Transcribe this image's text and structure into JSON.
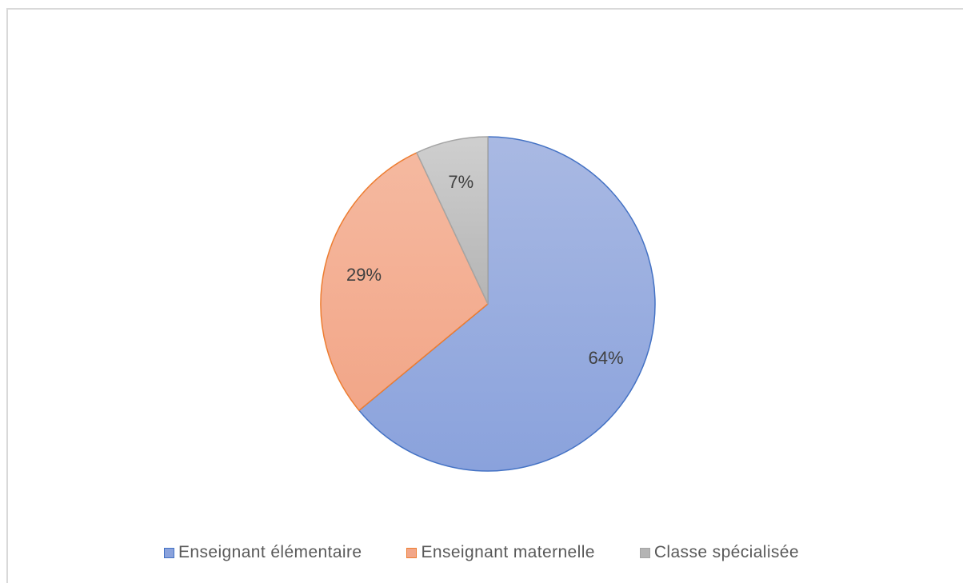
{
  "chart_data": {
    "type": "pie",
    "title": "",
    "categories": [
      "Enseignant élémentaire",
      "Enseignant maternelle",
      "Classe spécialisée"
    ],
    "values": [
      64,
      29,
      7
    ],
    "data_labels": [
      "64%",
      "29%",
      "7%"
    ],
    "legend_position": "bottom",
    "start_angle_deg": 0,
    "direction": "clockwise",
    "colors": {
      "fills_top": [
        "#a9b9e3",
        "#f5b9a0",
        "#cfcfcf"
      ],
      "fills_bottom": [
        "#8aa2dc",
        "#f2a688",
        "#b4b4b4"
      ],
      "strokes": [
        "#4472c4",
        "#ed7d31",
        "#a5a5a5"
      ]
    }
  }
}
